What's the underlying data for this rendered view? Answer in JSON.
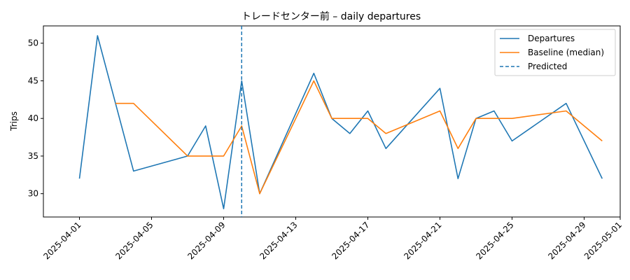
{
  "chart_data": {
    "type": "line",
    "title": "トレードセンター前 – daily departures",
    "xlabel": "",
    "ylabel": "Trips",
    "ylim": [
      26.9,
      52.3
    ],
    "xlim": [
      "2025-03-30",
      "2025-05-01"
    ],
    "x_ticks": [
      "2025-04-01",
      "2025-04-05",
      "2025-04-09",
      "2025-04-13",
      "2025-04-17",
      "2025-04-21",
      "2025-04-25",
      "2025-04-29",
      "2025-05-01"
    ],
    "y_ticks": [
      30,
      35,
      40,
      45,
      50
    ],
    "grid": false,
    "legend_position": "top-right",
    "series": [
      {
        "name": "Departures",
        "color": "#1f77b4",
        "style": "solid",
        "points": [
          [
            "2025-04-01",
            32
          ],
          [
            "2025-04-02",
            51
          ],
          [
            "2025-04-04",
            33
          ],
          [
            "2025-04-07",
            35
          ],
          [
            "2025-04-08",
            39
          ],
          [
            "2025-04-09",
            28
          ],
          [
            "2025-04-10",
            45
          ],
          [
            "2025-04-11",
            30
          ],
          [
            "2025-04-14",
            46
          ],
          [
            "2025-04-15",
            40
          ],
          [
            "2025-04-16",
            38
          ],
          [
            "2025-04-17",
            41
          ],
          [
            "2025-04-18",
            36
          ],
          [
            "2025-04-21",
            44
          ],
          [
            "2025-04-22",
            32
          ],
          [
            "2025-04-23",
            40
          ],
          [
            "2025-04-24",
            41
          ],
          [
            "2025-04-25",
            37
          ],
          [
            "2025-04-28",
            42
          ],
          [
            "2025-04-30",
            32
          ]
        ]
      },
      {
        "name": "Baseline (median)",
        "color": "#ff7f0e",
        "style": "solid",
        "points": [
          [
            "2025-04-03",
            42
          ],
          [
            "2025-04-04",
            42
          ],
          [
            "2025-04-07",
            35
          ],
          [
            "2025-04-08",
            35
          ],
          [
            "2025-04-09",
            35
          ],
          [
            "2025-04-10",
            39
          ],
          [
            "2025-04-11",
            30
          ],
          [
            "2025-04-14",
            45
          ],
          [
            "2025-04-15",
            40
          ],
          [
            "2025-04-16",
            40
          ],
          [
            "2025-04-17",
            40
          ],
          [
            "2025-04-18",
            38
          ],
          [
            "2025-04-21",
            41
          ],
          [
            "2025-04-22",
            36
          ],
          [
            "2025-04-23",
            40
          ],
          [
            "2025-04-24",
            40
          ],
          [
            "2025-04-25",
            40
          ],
          [
            "2025-04-28",
            41
          ],
          [
            "2025-04-30",
            37
          ]
        ]
      }
    ],
    "markers": [
      {
        "name": "Predicted",
        "date": "2025-04-10",
        "color": "#1f77b4",
        "style": "dashed"
      }
    ]
  }
}
